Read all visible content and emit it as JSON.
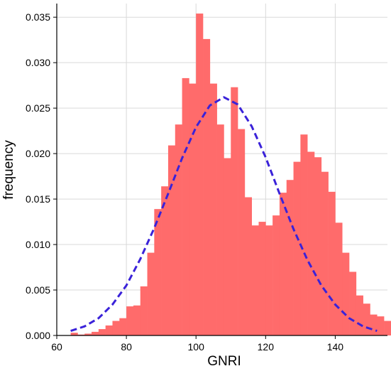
{
  "chart_data": {
    "type": "bar",
    "title": "",
    "xlabel": "GNRI",
    "ylabel": "frequency",
    "xlim": [
      60,
      155
    ],
    "ylim": [
      0,
      0.0365
    ],
    "xticks": [
      60,
      80,
      100,
      120,
      140
    ],
    "xtick_labels": [
      "60",
      "80",
      "100",
      "120",
      "140"
    ],
    "yticks": [
      0,
      0.005,
      0.01,
      0.015,
      0.02,
      0.025,
      0.03,
      0.035
    ],
    "ytick_labels": [
      "0.000",
      "0.005",
      "0.010",
      "0.015",
      "0.020",
      "0.025",
      "0.030",
      "0.035"
    ],
    "grid": true,
    "colors": {
      "bars": "#ff6b6b",
      "curve": "#3a22d9",
      "grid": "#d9d9d9"
    },
    "histogram": {
      "bin_width": 2,
      "bin_edges_start": 64,
      "values": [
        0.0003,
        0.0001,
        0.0002,
        0.0004,
        0.0007,
        0.0011,
        0.0016,
        0.0019,
        0.0032,
        0.0033,
        0.0054,
        0.0091,
        0.0139,
        0.0164,
        0.0209,
        0.0232,
        0.0283,
        0.0277,
        0.0354,
        0.0326,
        0.0277,
        0.0232,
        0.0195,
        0.0273,
        0.0227,
        0.0152,
        0.0121,
        0.0125,
        0.0121,
        0.0132,
        0.0157,
        0.0171,
        0.0191,
        0.0221,
        0.0202,
        0.0196,
        0.018,
        0.0158,
        0.0124,
        0.0091,
        0.007,
        0.0044,
        0.0035,
        0.0023,
        0.0021,
        0.0016,
        0.0007,
        0.0006,
        0.0004,
        0.0003,
        0.0002,
        0.0002
      ]
    },
    "curve": {
      "name": "",
      "style": "dashed",
      "x": [
        64,
        68,
        72,
        76,
        80,
        84,
        88,
        92,
        96,
        100,
        104,
        108,
        112,
        116,
        120,
        124,
        128,
        132,
        136,
        140,
        144,
        148,
        152
      ],
      "y": [
        0.0005,
        0.001,
        0.0019,
        0.0034,
        0.0055,
        0.0084,
        0.0118,
        0.0156,
        0.0195,
        0.0229,
        0.0253,
        0.0262,
        0.0254,
        0.023,
        0.0196,
        0.0156,
        0.0117,
        0.0083,
        0.0055,
        0.0034,
        0.0019,
        0.001,
        0.0005
      ]
    }
  }
}
